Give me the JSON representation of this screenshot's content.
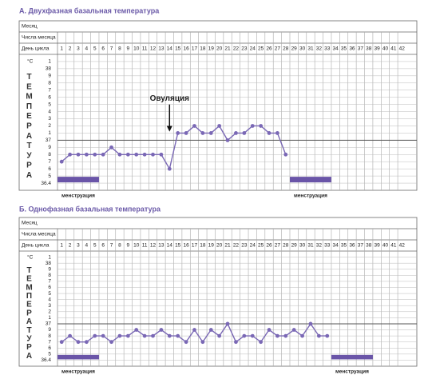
{
  "chart_data": [
    {
      "type": "line",
      "title": "А. Двухфазная базальная температура",
      "row_labels": [
        "Месяц",
        "Числа месяца",
        "День цикла"
      ],
      "unit_label": "°C",
      "ylabel": "ТЕМПЕРАТУРА",
      "xlim": [
        0.5,
        43.8
      ],
      "xticks": [
        1,
        2,
        3,
        4,
        5,
        6,
        7,
        8,
        9,
        10,
        11,
        12,
        13,
        14,
        15,
        16,
        17,
        18,
        19,
        20,
        21,
        22,
        23,
        24,
        25,
        26,
        27,
        28,
        29,
        30,
        31,
        32,
        33,
        34,
        35,
        36,
        37,
        38,
        39,
        40,
        41,
        42
      ],
      "ylim": [
        36.3,
        38.2
      ],
      "yticks": [
        {
          "value": 38.1,
          "label": "1"
        },
        38,
        {
          "value": 37.9,
          "label": "9"
        },
        {
          "value": 37.8,
          "label": "8"
        },
        {
          "value": 37.7,
          "label": "7"
        },
        {
          "value": 37.6,
          "label": "6"
        },
        {
          "value": 37.5,
          "label": "5"
        },
        {
          "value": 37.4,
          "label": "4"
        },
        {
          "value": 37.3,
          "label": "3"
        },
        {
          "value": 37.2,
          "label": "2"
        },
        {
          "value": 37.1,
          "label": "1"
        },
        37,
        {
          "value": 36.9,
          "label": "9"
        },
        {
          "value": 36.8,
          "label": "8"
        },
        {
          "value": 36.7,
          "label": "7"
        },
        {
          "value": 36.6,
          "label": "6"
        },
        {
          "value": 36.5,
          "label": "5"
        },
        36.4
      ],
      "reference_line": 37,
      "color": "#7a68b5",
      "x": [
        1,
        2,
        3,
        4,
        5,
        6,
        7,
        8,
        9,
        10,
        11,
        12,
        13,
        14,
        15,
        16,
        17,
        18,
        19,
        20,
        21,
        22,
        23,
        24,
        25,
        26,
        27,
        28
      ],
      "values": [
        36.7,
        36.8,
        36.8,
        36.8,
        36.8,
        36.8,
        36.9,
        36.8,
        36.8,
        36.8,
        36.8,
        36.8,
        36.8,
        36.6,
        37.1,
        37.1,
        37.2,
        37.1,
        37.1,
        37.2,
        37.0,
        37.1,
        37.1,
        37.2,
        37.2,
        37.1,
        37.1,
        36.8
      ],
      "annotation": {
        "text": "Овуляция",
        "x": 14
      },
      "spans": [
        {
          "label": "менструация",
          "start": 1,
          "end": 5
        },
        {
          "label": "менструация",
          "start": 29,
          "end": 33
        }
      ]
    },
    {
      "type": "line",
      "title": "Б. Однофазная базальная температура",
      "row_labels": [
        "Месяц",
        "Числа месяца",
        "День цикла"
      ],
      "unit_label": "°C",
      "ylabel": "ТЕМПЕРАТУРА",
      "xlim": [
        0.5,
        43.8
      ],
      "xticks": [
        1,
        2,
        3,
        4,
        5,
        6,
        7,
        8,
        9,
        10,
        11,
        12,
        13,
        14,
        15,
        16,
        17,
        18,
        19,
        20,
        21,
        22,
        23,
        24,
        25,
        26,
        27,
        28,
        29,
        30,
        31,
        32,
        33,
        34,
        35,
        36,
        37,
        38,
        39,
        40,
        41,
        42
      ],
      "ylim": [
        36.3,
        38.2
      ],
      "yticks": [
        {
          "value": 38.1,
          "label": "1"
        },
        38,
        {
          "value": 37.9,
          "label": "9"
        },
        {
          "value": 37.8,
          "label": "8"
        },
        {
          "value": 37.7,
          "label": "7"
        },
        {
          "value": 37.6,
          "label": "6"
        },
        {
          "value": 37.5,
          "label": "5"
        },
        {
          "value": 37.4,
          "label": "4"
        },
        {
          "value": 37.3,
          "label": "3"
        },
        {
          "value": 37.2,
          "label": "2"
        },
        {
          "value": 37.1,
          "label": "1"
        },
        37,
        {
          "value": 36.9,
          "label": "9"
        },
        {
          "value": 36.8,
          "label": "8"
        },
        {
          "value": 36.7,
          "label": "7"
        },
        {
          "value": 36.6,
          "label": "6"
        },
        {
          "value": 36.5,
          "label": "5"
        },
        36.4
      ],
      "reference_line": 37,
      "color": "#7a68b5",
      "x": [
        1,
        2,
        3,
        4,
        5,
        6,
        7,
        8,
        9,
        10,
        11,
        12,
        13,
        14,
        15,
        16,
        17,
        18,
        19,
        20,
        21,
        22,
        23,
        24,
        25,
        26,
        27,
        28,
        29,
        30,
        31,
        32,
        33
      ],
      "values": [
        36.7,
        36.8,
        36.7,
        36.7,
        36.8,
        36.8,
        36.7,
        36.8,
        36.8,
        36.9,
        36.8,
        36.8,
        36.9,
        36.8,
        36.8,
        36.7,
        36.9,
        36.7,
        36.9,
        36.8,
        37.0,
        36.7,
        36.8,
        36.8,
        36.7,
        36.9,
        36.8,
        36.8,
        36.9,
        36.8,
        37.0,
        36.8,
        36.8
      ],
      "spans": [
        {
          "label": "менструация",
          "start": 1,
          "end": 5
        },
        {
          "label": "менструация",
          "start": 34,
          "end": 38
        }
      ]
    }
  ]
}
